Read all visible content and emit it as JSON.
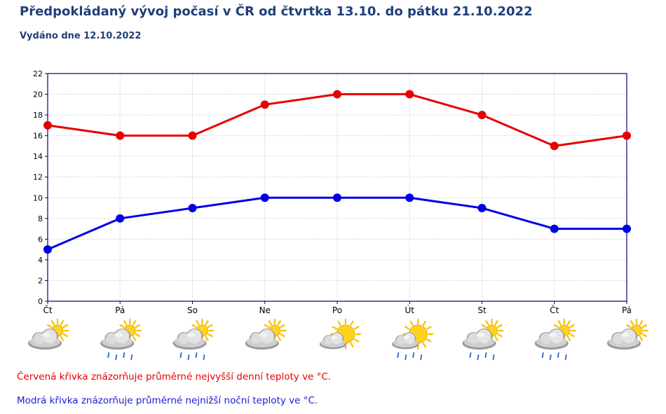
{
  "header": {
    "title": "Předpokládaný vývoj počasí v ČR od čtvrtka 13.10. do pátku 21.10.2022",
    "subtitle": "Vydáno dne 12.10.2022"
  },
  "chart_data": {
    "type": "line",
    "categories": [
      "Čt",
      "Pá",
      "So",
      "Ne",
      "Po",
      "Út",
      "St",
      "Čt",
      "Pá"
    ],
    "series": [
      {
        "values": [
          17,
          16,
          16,
          19,
          20,
          20,
          18,
          15,
          16
        ],
        "color": "#e60000"
      },
      {
        "values": [
          5,
          8,
          9,
          10,
          10,
          10,
          9,
          7,
          7
        ],
        "color": "#0000e6"
      }
    ],
    "ylim": [
      0,
      22
    ],
    "yticks": [
      "0",
      "2",
      "4",
      "6",
      "8",
      "10",
      "12",
      "14",
      "16",
      "18",
      "20",
      "22"
    ],
    "grid": true,
    "weather_icons": [
      "cloud-sun-icon",
      "cloud-sun-rain-icon",
      "cloud-sun-rain-icon",
      "cloud-sun-icon",
      "sun-cloud-icon",
      "sun-cloud-rain-icon",
      "cloud-sun-rain-icon",
      "cloud-sun-rain-icon",
      "cloud-sun-icon"
    ]
  },
  "notes": {
    "red": "Červená křivka znázorňuje průměrné nejvyšší denní teploty ve °C.",
    "blue": "Modrá křivka znázorňuje průměrné nejnižší noční teploty ve °C."
  },
  "colors": {
    "title": "#1f3f7a",
    "axis": "#000080",
    "grid": "#bbbbbb",
    "red_note": "#e60000",
    "blue_note": "#1a1ad6"
  }
}
